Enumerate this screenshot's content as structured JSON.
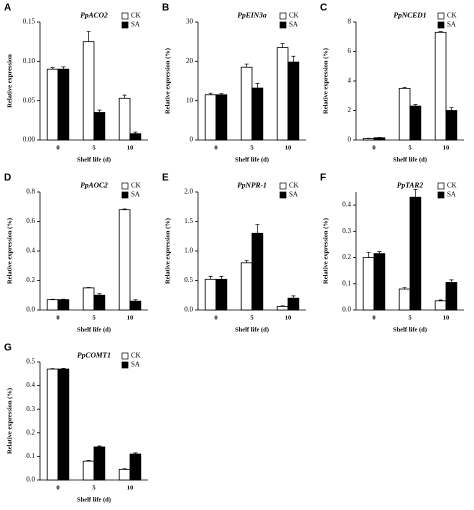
{
  "chart_data": [
    {
      "type": "bar",
      "panel": "A",
      "title": "PpACO2",
      "x_label": "Shelf life (d)",
      "y_label": "Relative expression",
      "categories": [
        "0",
        "5",
        "10"
      ],
      "ylim": [
        0,
        0.15
      ],
      "yticks": [
        {
          "value": 0,
          "label": "0.00"
        },
        0.05,
        {
          "value": 0.1,
          "label": "0.10"
        },
        {
          "value": 0.15,
          "label": "0.15"
        }
      ],
      "legend": "upper right",
      "series": [
        {
          "name": "CK",
          "color": "#ffffff",
          "values": [
            0.09,
            0.125,
            0.053
          ],
          "errors": [
            0.002,
            0.013,
            0.004
          ]
        },
        {
          "name": "SA",
          "color": "#000000",
          "values": [
            0.09,
            0.035,
            0.008
          ],
          "errors": [
            0.003,
            0.003,
            0.002
          ]
        }
      ]
    },
    {
      "type": "bar",
      "panel": "B",
      "title": "PpEIN3a",
      "x_label": "Shelf life (d)",
      "y_label": "Relative expression (%)",
      "categories": [
        "0",
        "5",
        "10"
      ],
      "ylim": [
        0,
        30
      ],
      "yticks": [
        0,
        10,
        20,
        30
      ],
      "legend": "upper right",
      "series": [
        {
          "name": "CK",
          "color": "#ffffff",
          "values": [
            11.5,
            18.5,
            23.5
          ],
          "errors": [
            0.4,
            0.8,
            1
          ]
        },
        {
          "name": "SA",
          "color": "#000000",
          "values": [
            11.5,
            13.2,
            19.8
          ],
          "errors": [
            0.3,
            1.2,
            1.5
          ]
        }
      ]
    },
    {
      "type": "bar",
      "panel": "C",
      "title": "PpNCED1",
      "x_label": "Shelf life (d)",
      "y_label": "Relative expression (%)",
      "categories": [
        "0",
        "5",
        "10"
      ],
      "ylim": [
        0,
        8
      ],
      "yticks": [
        0,
        2,
        4,
        6,
        8
      ],
      "legend": "upper right",
      "series": [
        {
          "name": "CK",
          "color": "#ffffff",
          "values": [
            0.1,
            3.5,
            7.3
          ],
          "errors": [
            0.02,
            0.05,
            0.05
          ]
        },
        {
          "name": "SA",
          "color": "#000000",
          "values": [
            0.15,
            2.3,
            2.0
          ],
          "errors": [
            0.02,
            0.1,
            0.2
          ]
        }
      ]
    },
    {
      "type": "bar",
      "panel": "D",
      "title": "PpAOC2",
      "x_label": "Shelf life (d)",
      "y_label": "Relative expression (%)",
      "categories": [
        "0",
        "5",
        "10"
      ],
      "ylim": [
        0,
        0.8
      ],
      "yticks": [
        {
          "value": 0,
          "label": "0.0"
        },
        0.2,
        0.4,
        0.6,
        0.8
      ],
      "legend": "upper right",
      "series": [
        {
          "name": "CK",
          "color": "#ffffff",
          "values": [
            0.07,
            0.15,
            0.68
          ],
          "errors": [
            0.003,
            0.003,
            0.005
          ]
        },
        {
          "name": "SA",
          "color": "#000000",
          "values": [
            0.07,
            0.1,
            0.06
          ],
          "errors": [
            0.003,
            0.01,
            0.01
          ]
        }
      ]
    },
    {
      "type": "bar",
      "panel": "E",
      "title": "PpNPR-1",
      "x_label": "Shelf life (d)",
      "y_label": "Relative expression (%)",
      "categories": [
        "0",
        "5",
        "10"
      ],
      "ylim": [
        0,
        2
      ],
      "yticks": [
        {
          "value": 0,
          "label": "0.0"
        },
        0.5,
        {
          "value": 1,
          "label": "1.0"
        },
        1.5,
        {
          "value": 2,
          "label": "2.0"
        }
      ],
      "legend": "upper right",
      "series": [
        {
          "name": "CK",
          "color": "#ffffff",
          "values": [
            0.52,
            0.8,
            0.06
          ],
          "errors": [
            0.05,
            0.04,
            0.01
          ]
        },
        {
          "name": "SA",
          "color": "#000000",
          "values": [
            0.52,
            1.3,
            0.2
          ],
          "errors": [
            0.05,
            0.15,
            0.04
          ]
        }
      ]
    },
    {
      "type": "bar",
      "panel": "F",
      "title": "PpTAR2",
      "x_label": "Shelf life (d)",
      "y_label": "Relative expression (%)",
      "categories": [
        "0",
        "5",
        "10"
      ],
      "ylim": [
        0,
        0.45
      ],
      "yticks": [
        {
          "value": 0,
          "label": "0.0"
        },
        0.1,
        0.2,
        0.3,
        0.4
      ],
      "legend": "upper right",
      "series": [
        {
          "name": "CK",
          "color": "#ffffff",
          "values": [
            0.2,
            0.08,
            0.035
          ],
          "errors": [
            0.02,
            0.005,
            0.003
          ]
        },
        {
          "name": "SA",
          "color": "#000000",
          "values": [
            0.215,
            0.43,
            0.105
          ],
          "errors": [
            0.008,
            0.03,
            0.01
          ]
        }
      ]
    },
    {
      "type": "bar",
      "panel": "G",
      "title": "PpCOMT1",
      "x_label": "Shelf life (d)",
      "y_label": "Relative expression (%)",
      "categories": [
        "0",
        "5",
        "10"
      ],
      "ylim": [
        0,
        0.5
      ],
      "yticks": [
        {
          "value": 0,
          "label": "0.0"
        },
        0.1,
        0.2,
        0.3,
        0.4,
        0.5
      ],
      "legend": "upper right",
      "series": [
        {
          "name": "CK",
          "color": "#ffffff",
          "values": [
            0.47,
            0.08,
            0.045
          ],
          "errors": [
            0.002,
            0.003,
            0.003
          ]
        },
        {
          "name": "SA",
          "color": "#000000",
          "values": [
            0.47,
            0.14,
            0.11
          ],
          "errors": [
            0.003,
            0.004,
            0.005
          ]
        }
      ]
    }
  ]
}
